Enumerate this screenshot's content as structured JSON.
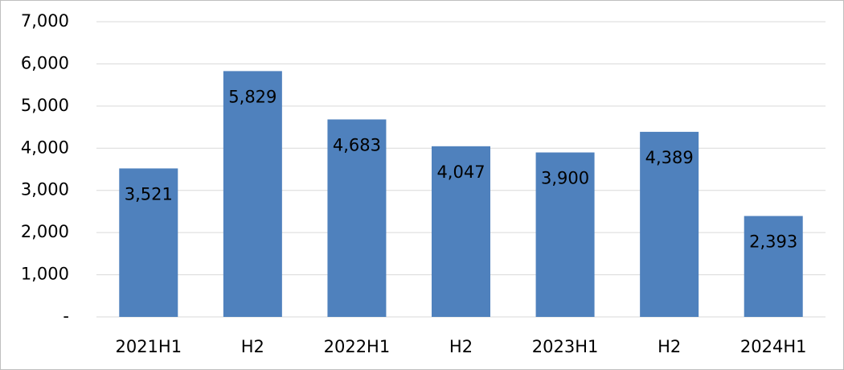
{
  "chart_data": {
    "type": "bar",
    "categories": [
      "2021H1",
      "H2",
      "2022H1",
      "H2",
      "2023H1",
      "H2",
      "2024H1"
    ],
    "values": [
      3521,
      5829,
      4683,
      4047,
      3900,
      4389,
      2393
    ],
    "value_labels": [
      "3,521",
      "5,829",
      "4,683",
      "4,047",
      "3,900",
      "4,389",
      "2,393"
    ],
    "color": "#4f81bd",
    "ylim": [
      0,
      7000
    ],
    "yticks": [
      {
        "value": 0,
        "label": "-"
      },
      {
        "value": 1000,
        "label": "1,000"
      },
      {
        "value": 2000,
        "label": "2,000"
      },
      {
        "value": 3000,
        "label": "3,000"
      },
      {
        "value": 4000,
        "label": "4,000"
      },
      {
        "value": 5000,
        "label": "5,000"
      },
      {
        "value": 6000,
        "label": "6,000"
      },
      {
        "value": 7000,
        "label": "7,000"
      }
    ],
    "grid": true
  }
}
